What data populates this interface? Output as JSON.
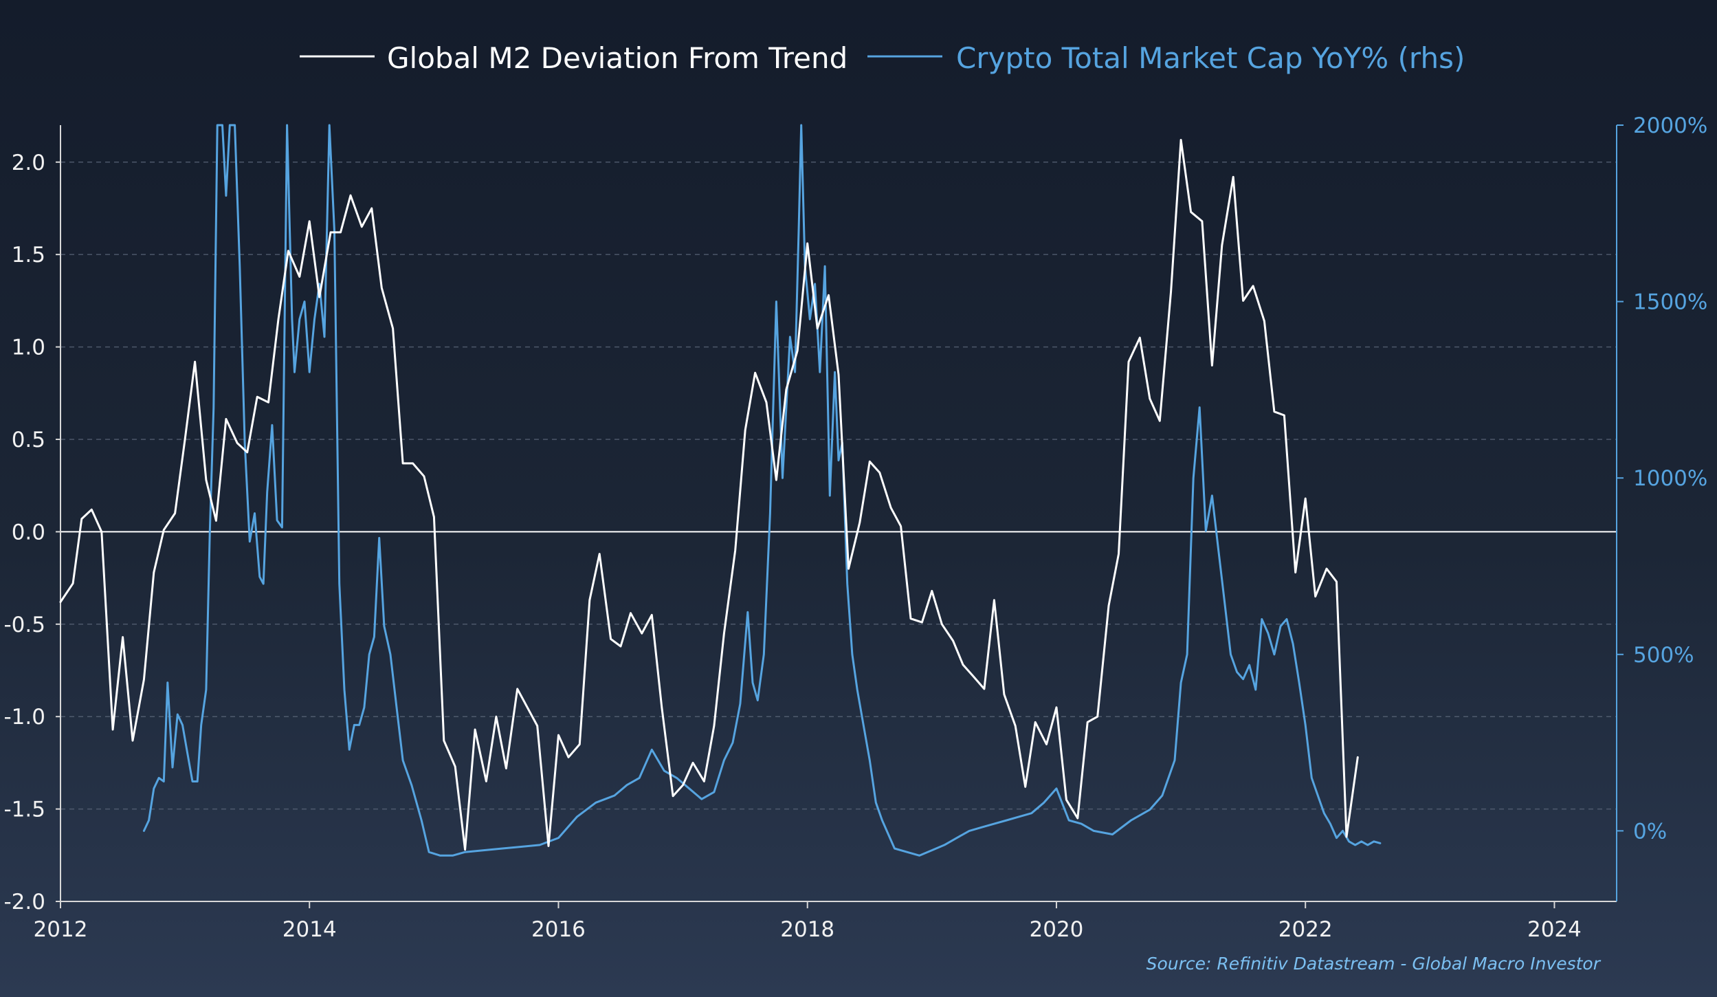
{
  "chart_data": {
    "type": "line",
    "title": "",
    "legend": {
      "placement": "top-center"
    },
    "x_axis": {
      "range": [
        2012,
        2024.5
      ],
      "ticks": [
        "2012",
        "2014",
        "2016",
        "2018",
        "2020",
        "2022",
        "2024"
      ]
    },
    "y_left": {
      "range": [
        -2.0,
        2.2
      ],
      "ticks": [
        "-2.0",
        "-1.5",
        "-1.0",
        "-0.5",
        "0.0",
        "0.5",
        "1.0",
        "1.5",
        "2.0"
      ]
    },
    "y_right": {
      "range": [
        -200,
        2000
      ],
      "ticks": [
        "0%",
        "500%",
        "1000%",
        "1500%",
        "2000%"
      ]
    },
    "grid": "horizontal dashed",
    "colors": {
      "m2": "#ffffff",
      "crypto": "#56a4e0",
      "zero_line": "#ffffff"
    },
    "source": "Source: Refinitiv Datastream - Global Macro Investor",
    "series": [
      {
        "name": "Global M2 Deviation From Trend",
        "axis": "left",
        "x": [
          2012.0,
          2012.1,
          2012.17,
          2012.25,
          2012.33,
          2012.42,
          2012.5,
          2012.58,
          2012.67,
          2012.75,
          2012.83,
          2012.92,
          2013.0,
          2013.08,
          2013.17,
          2013.25,
          2013.33,
          2013.42,
          2013.5,
          2013.58,
          2013.67,
          2013.75,
          2013.83,
          2013.92,
          2014.0,
          2014.08,
          2014.17,
          2014.25,
          2014.33,
          2014.42,
          2014.5,
          2014.58,
          2014.67,
          2014.75,
          2014.83,
          2014.92,
          2015.0,
          2015.08,
          2015.17,
          2015.25,
          2015.33,
          2015.42,
          2015.5,
          2015.58,
          2015.67,
          2015.75,
          2015.83,
          2015.92,
          2016.0,
          2016.08,
          2016.17,
          2016.25,
          2016.33,
          2016.42,
          2016.5,
          2016.58,
          2016.67,
          2016.75,
          2016.83,
          2016.92,
          2017.0,
          2017.08,
          2017.17,
          2017.25,
          2017.33,
          2017.42,
          2017.5,
          2017.58,
          2017.67,
          2017.75,
          2017.83,
          2017.92,
          2018.0,
          2018.08,
          2018.17,
          2018.25,
          2018.33,
          2018.42,
          2018.5,
          2018.58,
          2018.67,
          2018.75,
          2018.83,
          2018.92,
          2019.0,
          2019.08,
          2019.17,
          2019.25,
          2019.33,
          2019.42,
          2019.5,
          2019.58,
          2019.67,
          2019.75,
          2019.83,
          2019.92,
          2020.0,
          2020.08,
          2020.17,
          2020.25,
          2020.33,
          2020.42,
          2020.5,
          2020.58,
          2020.67,
          2020.75,
          2020.83,
          2020.92,
          2021.0,
          2021.08,
          2021.17,
          2021.25,
          2021.33,
          2021.42,
          2021.5,
          2021.58,
          2021.67,
          2021.75,
          2021.83,
          2021.92,
          2022.0,
          2022.08,
          2022.17,
          2022.25,
          2022.33,
          2022.42
        ],
        "y": [
          -0.38,
          -0.28,
          0.07,
          0.12,
          0.0,
          -1.07,
          -0.57,
          -1.13,
          -0.8,
          -0.22,
          0.01,
          0.1,
          0.5,
          0.92,
          0.28,
          0.06,
          0.61,
          0.48,
          0.43,
          0.73,
          0.7,
          1.15,
          1.52,
          1.38,
          1.68,
          1.27,
          1.62,
          1.62,
          1.82,
          1.65,
          1.75,
          1.32,
          1.1,
          0.37,
          0.37,
          0.3,
          0.08,
          -1.13,
          -1.27,
          -1.72,
          -1.07,
          -1.35,
          -1.0,
          -1.28,
          -0.85,
          -0.95,
          -1.05,
          -1.7,
          -1.1,
          -1.22,
          -1.15,
          -0.37,
          -0.12,
          -0.58,
          -0.62,
          -0.44,
          -0.55,
          -0.45,
          -0.95,
          -1.43,
          -1.37,
          -1.25,
          -1.35,
          -1.05,
          -0.55,
          -0.1,
          0.55,
          0.86,
          0.7,
          0.28,
          0.77,
          0.98,
          1.56,
          1.1,
          1.28,
          0.85,
          -0.2,
          0.05,
          0.38,
          0.32,
          0.13,
          0.03,
          -0.47,
          -0.49,
          -0.32,
          -0.5,
          -0.59,
          -0.72,
          -0.78,
          -0.85,
          -0.37,
          -0.88,
          -1.05,
          -1.38,
          -1.03,
          -1.15,
          -0.95,
          -1.45,
          -1.55,
          -1.03,
          -1.0,
          -0.4,
          -0.12,
          0.92,
          1.05,
          0.72,
          0.6,
          1.3,
          2.12,
          1.73,
          1.68,
          0.9,
          1.55,
          1.92,
          1.25,
          1.33,
          1.14,
          0.65,
          0.63,
          -0.22,
          0.18,
          -0.35,
          -0.2,
          -0.27,
          -1.65,
          -1.22
        ]
      },
      {
        "name": "Crypto Total Market Cap YoY% (rhs)",
        "axis": "right",
        "x": [
          2012.67,
          2012.71,
          2012.75,
          2012.79,
          2012.83,
          2012.86,
          2012.9,
          2012.94,
          2012.98,
          2013.02,
          2013.06,
          2013.1,
          2013.13,
          2013.17,
          2013.2,
          2013.23,
          2013.26,
          2013.3,
          2013.33,
          2013.36,
          2013.4,
          2013.44,
          2013.48,
          2013.52,
          2013.56,
          2013.6,
          2013.63,
          2013.66,
          2013.7,
          2013.74,
          2013.78,
          2013.82,
          2013.86,
          2013.88,
          2013.92,
          2013.96,
          2014.0,
          2014.04,
          2014.08,
          2014.12,
          2014.16,
          2014.2,
          2014.24,
          2014.28,
          2014.32,
          2014.36,
          2014.4,
          2014.44,
          2014.48,
          2014.52,
          2014.56,
          2014.6,
          2014.65,
          2014.7,
          2014.75,
          2014.82,
          2014.9,
          2014.96,
          2015.05,
          2015.15,
          2015.25,
          2015.4,
          2015.55,
          2015.7,
          2015.85,
          2016.0,
          2016.15,
          2016.3,
          2016.45,
          2016.55,
          2016.65,
          2016.75,
          2016.85,
          2016.95,
          2017.05,
          2017.15,
          2017.25,
          2017.33,
          2017.4,
          2017.46,
          2017.52,
          2017.56,
          2017.6,
          2017.65,
          2017.7,
          2017.75,
          2017.8,
          2017.86,
          2017.9,
          2017.93,
          2017.95,
          2017.98,
          2018.02,
          2018.06,
          2018.1,
          2018.14,
          2018.18,
          2018.22,
          2018.25,
          2018.28,
          2018.32,
          2018.36,
          2018.4,
          2018.45,
          2018.5,
          2018.55,
          2018.6,
          2018.7,
          2018.8,
          2018.9,
          2019.0,
          2019.1,
          2019.2,
          2019.3,
          2019.4,
          2019.5,
          2019.6,
          2019.7,
          2019.8,
          2019.9,
          2020.0,
          2020.1,
          2020.2,
          2020.3,
          2020.45,
          2020.6,
          2020.75,
          2020.85,
          2020.95,
          2021.0,
          2021.05,
          2021.1,
          2021.15,
          2021.2,
          2021.25,
          2021.3,
          2021.35,
          2021.4,
          2021.45,
          2021.5,
          2021.55,
          2021.6,
          2021.65,
          2021.7,
          2021.75,
          2021.8,
          2021.85,
          2021.9,
          2021.95,
          2022.0,
          2022.05,
          2022.1,
          2022.15,
          2022.2,
          2022.25,
          2022.3,
          2022.35,
          2022.4,
          2022.45,
          2022.5,
          2022.55,
          2022.6
        ],
        "y": [
          0,
          30,
          120,
          150,
          140,
          420,
          180,
          330,
          300,
          220,
          140,
          140,
          300,
          400,
          850,
          1200,
          2000,
          2000,
          1800,
          2000,
          2000,
          1600,
          1100,
          820,
          900,
          720,
          700,
          960,
          1150,
          880,
          860,
          2000,
          1450,
          1300,
          1450,
          1500,
          1300,
          1450,
          1550,
          1400,
          2000,
          1700,
          700,
          400,
          230,
          300,
          300,
          350,
          500,
          550,
          830,
          580,
          500,
          350,
          200,
          130,
          30,
          -60,
          -70,
          -70,
          -60,
          -55,
          -50,
          -45,
          -40,
          -20,
          40,
          80,
          100,
          130,
          150,
          230,
          170,
          150,
          120,
          90,
          110,
          200,
          250,
          360,
          620,
          420,
          370,
          500,
          900,
          1500,
          1000,
          1400,
          1300,
          1700,
          2000,
          1600,
          1450,
          1550,
          1300,
          1600,
          950,
          1300,
          1050,
          1100,
          700,
          500,
          400,
          300,
          200,
          80,
          30,
          -50,
          -60,
          -70,
          -55,
          -40,
          -20,
          0,
          10,
          20,
          30,
          40,
          50,
          80,
          120,
          30,
          20,
          0,
          -10,
          30,
          60,
          100,
          200,
          420,
          500,
          1000,
          1200,
          850,
          950,
          800,
          650,
          500,
          450,
          430,
          470,
          400,
          600,
          560,
          500,
          580,
          600,
          530,
          420,
          300,
          150,
          100,
          50,
          20,
          -20,
          0,
          -30,
          -40,
          -30,
          -40,
          -30,
          -35
        ]
      }
    ]
  }
}
